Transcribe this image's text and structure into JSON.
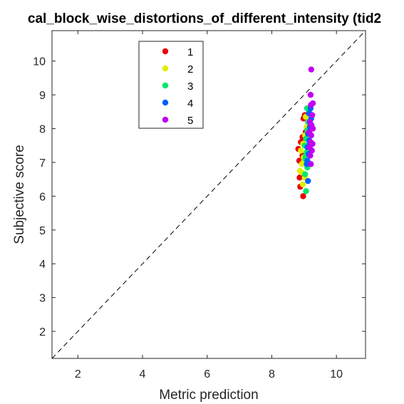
{
  "chart_data": {
    "type": "scatter",
    "title": "cal_block_wise_distortions_of_different_intensity (tid2",
    "xlabel": "Metric prediction",
    "ylabel": "Subjective score",
    "xlim": [
      1.2,
      10.9
    ],
    "ylim": [
      1.2,
      10.9
    ],
    "xticks": [
      2,
      4,
      6,
      8,
      10
    ],
    "yticks": [
      2,
      3,
      4,
      5,
      6,
      7,
      8,
      9,
      10
    ],
    "grid": false,
    "reference_line": {
      "style": "dashed",
      "color": "#000000",
      "from": [
        1.2,
        1.2
      ],
      "to": [
        10.9,
        10.9
      ]
    },
    "legend": {
      "placement": "top-center"
    },
    "series": [
      {
        "name": "1",
        "color": "#e8000b",
        "points": [
          [
            8.97,
            6.0
          ],
          [
            8.88,
            6.28
          ],
          [
            8.92,
            6.6
          ],
          [
            8.85,
            7.05
          ],
          [
            8.95,
            7.2
          ],
          [
            8.82,
            7.4
          ],
          [
            8.9,
            7.6
          ],
          [
            9.05,
            7.9
          ],
          [
            8.98,
            8.3
          ],
          [
            9.02,
            8.4
          ],
          [
            8.95,
            7.75
          ],
          [
            8.86,
            6.55
          ]
        ]
      },
      {
        "name": "2",
        "color": "#dfef00",
        "points": [
          [
            8.96,
            6.35
          ],
          [
            9.02,
            6.55
          ],
          [
            8.87,
            6.75
          ],
          [
            8.93,
            6.95
          ],
          [
            8.99,
            7.15
          ],
          [
            8.9,
            7.35
          ],
          [
            8.97,
            7.55
          ],
          [
            9.03,
            7.8
          ],
          [
            9.08,
            8.05
          ],
          [
            9.05,
            8.35
          ],
          [
            8.93,
            6.7
          ],
          [
            9.0,
            7.05
          ]
        ]
      },
      {
        "name": "3",
        "color": "#00e86a",
        "points": [
          [
            9.06,
            6.15
          ],
          [
            9.03,
            6.65
          ],
          [
            9.1,
            6.85
          ],
          [
            9.04,
            7.1
          ],
          [
            9.08,
            7.3
          ],
          [
            9.02,
            7.5
          ],
          [
            9.06,
            7.7
          ],
          [
            9.1,
            7.95
          ],
          [
            9.12,
            8.2
          ],
          [
            9.16,
            8.5
          ],
          [
            9.09,
            8.6
          ],
          [
            9.05,
            7.2
          ]
        ]
      },
      {
        "name": "4",
        "color": "#0060ff",
        "points": [
          [
            9.12,
            6.45
          ],
          [
            9.08,
            6.95
          ],
          [
            9.14,
            7.25
          ],
          [
            9.1,
            7.45
          ],
          [
            9.16,
            7.65
          ],
          [
            9.12,
            7.85
          ],
          [
            9.18,
            8.05
          ],
          [
            9.22,
            8.3
          ],
          [
            9.2,
            8.6
          ],
          [
            9.15,
            8.45
          ],
          [
            9.1,
            7.05
          ],
          [
            9.17,
            7.6
          ]
        ]
      },
      {
        "name": "5",
        "color": "#c100f5",
        "points": [
          [
            9.22,
            9.75
          ],
          [
            9.2,
            9.0
          ],
          [
            9.27,
            8.75
          ],
          [
            9.21,
            8.7
          ],
          [
            9.25,
            8.4
          ],
          [
            9.18,
            8.2
          ],
          [
            9.27,
            8.0
          ],
          [
            9.22,
            7.8
          ],
          [
            9.2,
            7.6
          ],
          [
            9.26,
            7.55
          ],
          [
            9.24,
            7.35
          ],
          [
            9.19,
            7.2
          ],
          [
            9.21,
            6.95
          ],
          [
            9.17,
            7.45
          ],
          [
            9.23,
            8.1
          ],
          [
            9.16,
            7.9
          ]
        ]
      }
    ]
  }
}
